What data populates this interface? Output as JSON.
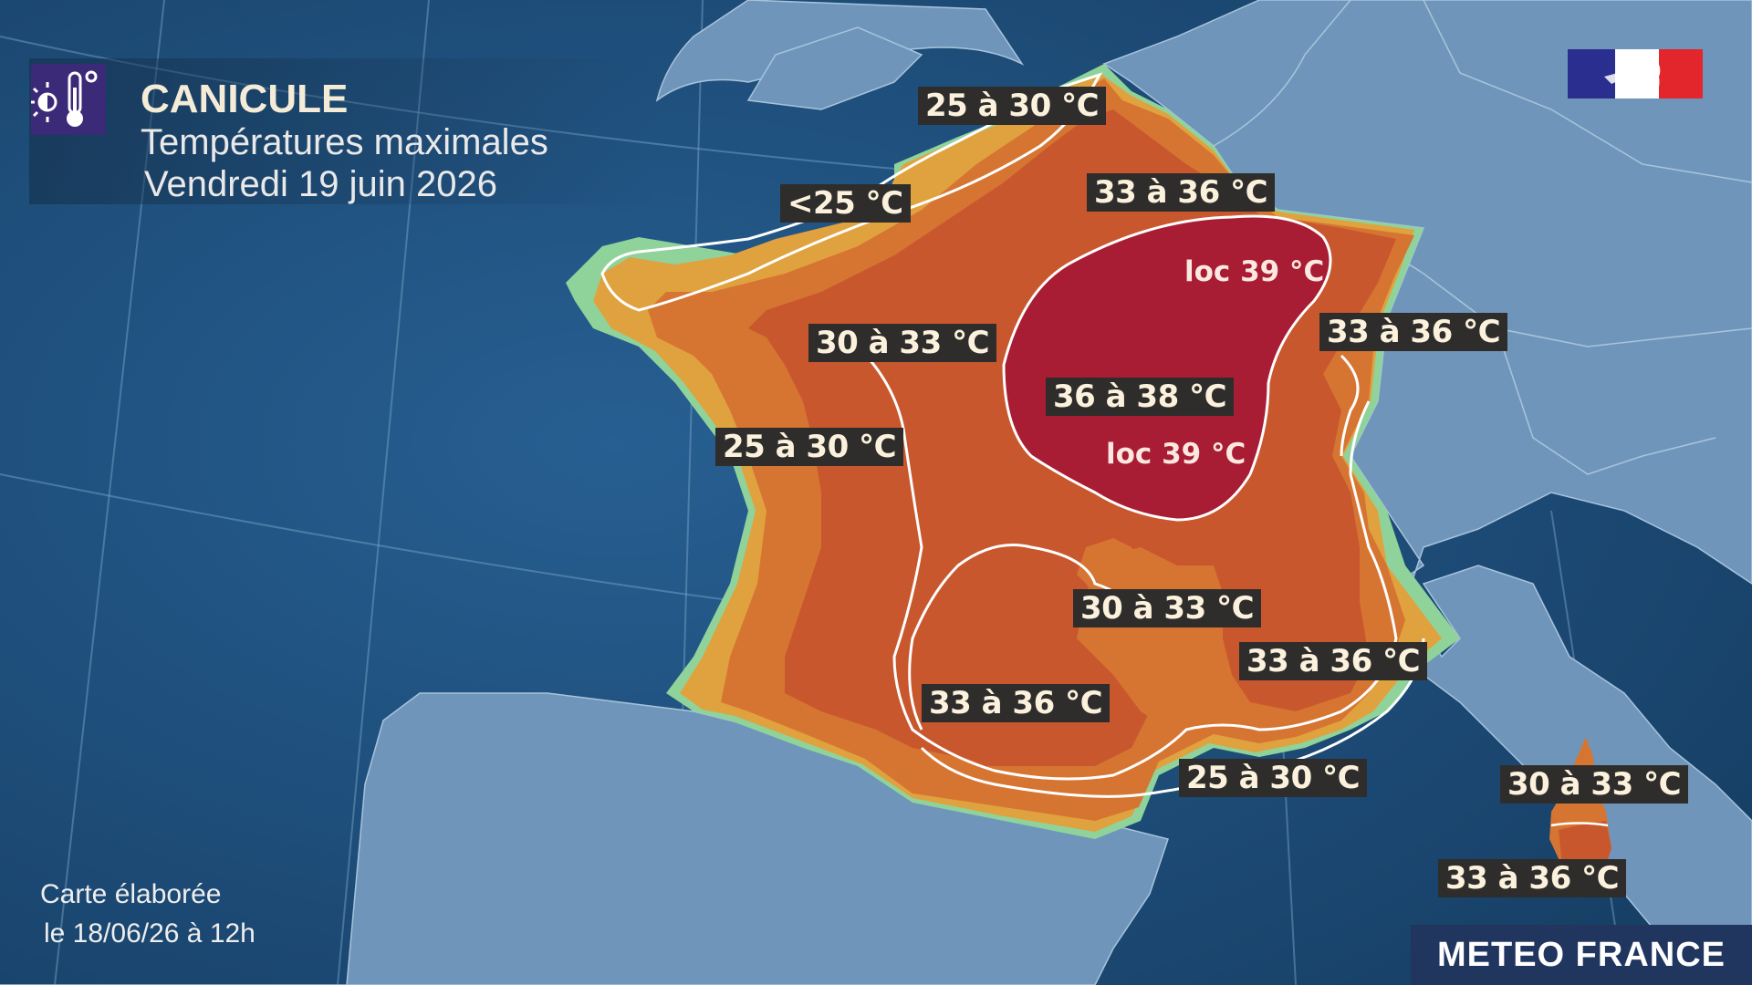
{
  "header": {
    "title": "CANICULE",
    "subtitle": "Températures maximales",
    "date": "Vendredi 19 juin 2026",
    "icon": "heat-thermometer-icon"
  },
  "credit": {
    "line1": "Carte élaborée",
    "line2": "le 18/06/26 à 12h"
  },
  "brand": "METEO FRANCE",
  "flag_icon": "french-republic-flag-icon",
  "legend_colors": {
    "below_25": "#8fd39b",
    "25_30": "#e0a23e",
    "30_33": "#d67532",
    "33_36": "#c8572e",
    "36_38": "#a81c34",
    "sea": "#1f5584",
    "land_foreign": "#6f96ba"
  },
  "labels": {
    "north": "25 à 30 °C",
    "channel": "<25 °C",
    "northeast": "33 à 36 °C",
    "brittany": "30 à 33 °C",
    "east": "33 à 36 °C",
    "atlantic": "25 à 30 °C",
    "center": "36 à 38 °C",
    "south_central": "30 à 33 °C",
    "alps": "33 à 36 °C",
    "southwest": "33 à 36 °C",
    "mediterranean": "25 à 30 °C",
    "corsica_north": "30 à 33 °C",
    "corsica_south": "33 à 36 °C",
    "loc1": "loc 39 °C",
    "loc2": "loc 39 °C"
  }
}
